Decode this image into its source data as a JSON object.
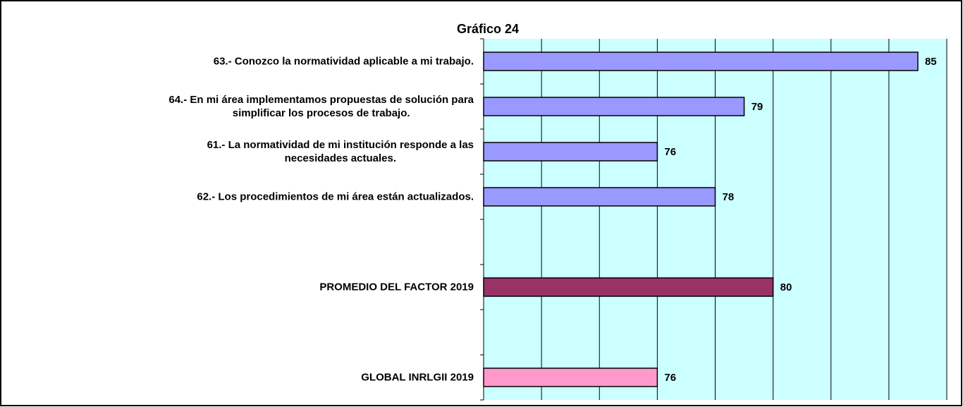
{
  "chart_data": {
    "type": "barh",
    "title": "Gráfico 24",
    "categories": [
      "63.- Conozco la normatividad aplicable a mi trabajo.",
      "64.- En mi área implementamos propuestas de solución para\nsimplificar los procesos de trabajo.",
      "61.- La normatividad de mi institución responde a las\nnecesidades actuales.",
      "62.- Los procedimientos de mi área están actualizados.",
      null,
      "PROMEDIO DEL FACTOR   2019",
      null,
      "GLOBAL INRLGII  2019"
    ],
    "values": [
      85,
      79,
      76,
      78,
      null,
      80,
      null,
      76
    ],
    "colors": [
      "#9999ff",
      "#9999ff",
      "#9999ff",
      "#9999ff",
      null,
      "#993366",
      null,
      "#ff99cc"
    ],
    "xlim": [
      70,
      86
    ],
    "xticks": [
      70,
      72,
      74,
      76,
      78,
      80,
      82,
      84,
      86
    ],
    "grid": true,
    "background": "#ccffff"
  }
}
